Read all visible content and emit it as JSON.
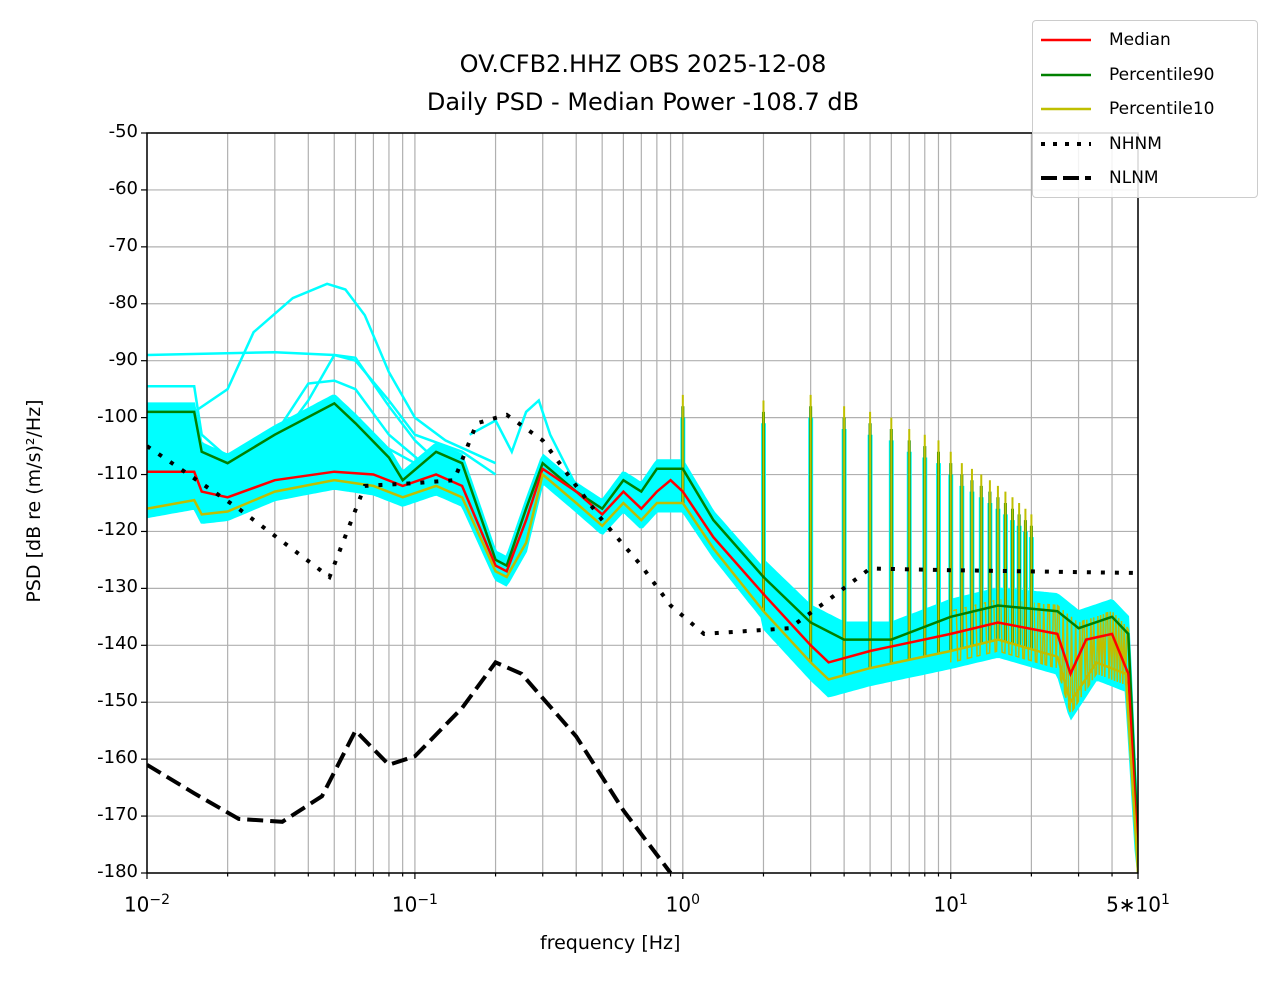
{
  "chart_data": {
    "type": "line",
    "title": "OV.CFB2.HHZ OBS 2025-12-08",
    "subtitle": "Daily PSD - Median Power -108.7 dB",
    "xlabel": "frequency [Hz]",
    "ylabel": "PSD [dB re (m/s)²/Hz]",
    "xscale": "log",
    "xlim": [
      0.01,
      50
    ],
    "ylim": [
      -180,
      -50
    ],
    "grid": true,
    "legend_position": "top-right outside",
    "yticks": [
      -50,
      -60,
      -70,
      -80,
      -90,
      -100,
      -110,
      -120,
      -130,
      -140,
      -150,
      -160,
      -170,
      -180
    ],
    "ytick_labels": [
      "-50",
      "-60",
      "-70",
      "-80",
      "-90",
      "-100",
      "-110",
      "-120",
      "-130",
      "-140",
      "-150",
      "-160",
      "-170",
      "-180"
    ],
    "xticks": [
      {
        "value": 0.01,
        "base": "10",
        "exp": "−2"
      },
      {
        "value": 0.1,
        "base": "10",
        "exp": "−1"
      },
      {
        "value": 1,
        "base": "10",
        "exp": "0"
      },
      {
        "value": 10,
        "base": "10",
        "exp": "1"
      },
      {
        "value": 50,
        "base": "5∗10",
        "exp": "1"
      }
    ],
    "series": [
      {
        "name": "Median",
        "color": "#ff0000",
        "style": "solid",
        "points": [
          [
            0.01,
            -109.5
          ],
          [
            0.015,
            -109.5
          ],
          [
            0.016,
            -113
          ],
          [
            0.02,
            -114
          ],
          [
            0.03,
            -111
          ],
          [
            0.05,
            -109.5
          ],
          [
            0.07,
            -110
          ],
          [
            0.09,
            -112
          ],
          [
            0.12,
            -110
          ],
          [
            0.15,
            -112
          ],
          [
            0.2,
            -126
          ],
          [
            0.22,
            -127
          ],
          [
            0.26,
            -118
          ],
          [
            0.3,
            -109
          ],
          [
            0.4,
            -113
          ],
          [
            0.5,
            -117
          ],
          [
            0.6,
            -113
          ],
          [
            0.7,
            -116
          ],
          [
            0.8,
            -113
          ],
          [
            0.9,
            -111
          ],
          [
            1.0,
            -113
          ],
          [
            1.3,
            -121
          ],
          [
            2,
            -131
          ],
          [
            3,
            -140
          ],
          [
            3.5,
            -143
          ],
          [
            5,
            -141
          ],
          [
            10,
            -138
          ],
          [
            15,
            -136
          ],
          [
            25,
            -138
          ],
          [
            28,
            -145
          ],
          [
            32,
            -139
          ],
          [
            40,
            -138
          ],
          [
            46,
            -145
          ],
          [
            50,
            -178
          ]
        ]
      },
      {
        "name": "Percentile90",
        "color": "#008000",
        "style": "solid",
        "points": [
          [
            0.01,
            -99
          ],
          [
            0.015,
            -99
          ],
          [
            0.016,
            -106
          ],
          [
            0.02,
            -108
          ],
          [
            0.03,
            -103
          ],
          [
            0.05,
            -97.5
          ],
          [
            0.06,
            -101
          ],
          [
            0.08,
            -107
          ],
          [
            0.09,
            -111
          ],
          [
            0.12,
            -106
          ],
          [
            0.15,
            -108
          ],
          [
            0.2,
            -125
          ],
          [
            0.22,
            -126
          ],
          [
            0.26,
            -116
          ],
          [
            0.3,
            -108
          ],
          [
            0.4,
            -113
          ],
          [
            0.5,
            -116
          ],
          [
            0.6,
            -111
          ],
          [
            0.7,
            -113
          ],
          [
            0.8,
            -109
          ],
          [
            1,
            -109
          ],
          [
            1.3,
            -118
          ],
          [
            2,
            -128
          ],
          [
            3,
            -136
          ],
          [
            4,
            -139
          ],
          [
            6,
            -139
          ],
          [
            10,
            -135
          ],
          [
            15,
            -133
          ],
          [
            25,
            -134
          ],
          [
            30,
            -137
          ],
          [
            40,
            -135
          ],
          [
            46,
            -138
          ],
          [
            50,
            -175
          ]
        ]
      },
      {
        "name": "Percentile10",
        "color": "#bfbf00",
        "style": "solid",
        "points": [
          [
            0.01,
            -116
          ],
          [
            0.015,
            -114.5
          ],
          [
            0.016,
            -117
          ],
          [
            0.02,
            -116.5
          ],
          [
            0.03,
            -113
          ],
          [
            0.05,
            -111
          ],
          [
            0.07,
            -112
          ],
          [
            0.09,
            -114
          ],
          [
            0.12,
            -112
          ],
          [
            0.15,
            -114
          ],
          [
            0.2,
            -127
          ],
          [
            0.22,
            -128
          ],
          [
            0.26,
            -122
          ],
          [
            0.3,
            -110
          ],
          [
            0.4,
            -115
          ],
          [
            0.5,
            -119
          ],
          [
            0.6,
            -115
          ],
          [
            0.7,
            -118
          ],
          [
            0.8,
            -115
          ],
          [
            1,
            -115
          ],
          [
            1.3,
            -123
          ],
          [
            2,
            -134
          ],
          [
            3,
            -143
          ],
          [
            3.5,
            -146
          ],
          [
            5,
            -144
          ],
          [
            10,
            -141
          ],
          [
            15,
            -139
          ],
          [
            25,
            -142
          ],
          [
            28,
            -150
          ],
          [
            35,
            -143
          ],
          [
            45,
            -145
          ],
          [
            50,
            -180
          ]
        ]
      },
      {
        "name": "NHNM",
        "color": "#000000",
        "style": "dotted",
        "points": [
          [
            0.01,
            -105
          ],
          [
            0.022,
            -116
          ],
          [
            0.048,
            -128
          ],
          [
            0.065,
            -112
          ],
          [
            0.1,
            -111.5
          ],
          [
            0.14,
            -111
          ],
          [
            0.17,
            -101
          ],
          [
            0.22,
            -99.5
          ],
          [
            0.3,
            -104
          ],
          [
            0.4,
            -112
          ],
          [
            0.5,
            -118
          ],
          [
            0.7,
            -126
          ],
          [
            0.9,
            -133
          ],
          [
            1.2,
            -138
          ],
          [
            2.5,
            -137
          ],
          [
            3.5,
            -132
          ],
          [
            5,
            -126.5
          ],
          [
            10,
            -126.8
          ],
          [
            50,
            -127.3
          ]
        ]
      },
      {
        "name": "NLNM",
        "color": "#000000",
        "style": "dashed",
        "points": [
          [
            0.01,
            -161
          ],
          [
            0.015,
            -166
          ],
          [
            0.022,
            -170.5
          ],
          [
            0.032,
            -171
          ],
          [
            0.045,
            -166.5
          ],
          [
            0.06,
            -155
          ],
          [
            0.08,
            -161
          ],
          [
            0.1,
            -159.5
          ],
          [
            0.15,
            -151
          ],
          [
            0.2,
            -143
          ],
          [
            0.25,
            -145
          ],
          [
            0.4,
            -156
          ],
          [
            0.6,
            -169
          ],
          [
            0.9,
            -180
          ]
        ]
      }
    ],
    "harmonic_spikes": [
      [
        1,
        -100
      ],
      [
        2,
        -101
      ],
      [
        3,
        -100
      ],
      [
        4,
        -102
      ],
      [
        5,
        -103
      ],
      [
        6,
        -104
      ],
      [
        7,
        -106
      ],
      [
        8,
        -107
      ],
      [
        9,
        -108
      ],
      [
        10,
        -110
      ],
      [
        11,
        -112
      ],
      [
        12,
        -113
      ],
      [
        13,
        -114
      ],
      [
        14,
        -115
      ],
      [
        15,
        -116
      ],
      [
        16,
        -117
      ],
      [
        17,
        -118
      ],
      [
        18,
        -119
      ],
      [
        19,
        -120
      ],
      [
        20,
        -121
      ]
    ],
    "individual_traces_color": "#00ffff",
    "individual_traces": [
      [
        [
          0.01,
          -89
        ],
        [
          0.03,
          -88.5
        ],
        [
          0.05,
          -89
        ],
        [
          0.06,
          -90
        ],
        [
          0.08,
          -97
        ],
        [
          0.1,
          -103
        ],
        [
          0.15,
          -106
        ],
        [
          0.2,
          -110
        ]
      ],
      [
        [
          0.015,
          -99
        ],
        [
          0.02,
          -95
        ],
        [
          0.025,
          -85
        ],
        [
          0.035,
          -79
        ],
        [
          0.047,
          -76.5
        ],
        [
          0.055,
          -77.5
        ],
        [
          0.065,
          -82
        ],
        [
          0.08,
          -92
        ],
        [
          0.1,
          -100
        ],
        [
          0.13,
          -104
        ],
        [
          0.2,
          -108
        ]
      ],
      [
        [
          0.02,
          -108
        ],
        [
          0.03,
          -103
        ],
        [
          0.04,
          -94
        ],
        [
          0.05,
          -93.5
        ],
        [
          0.06,
          -95
        ],
        [
          0.08,
          -103
        ],
        [
          0.12,
          -110
        ]
      ],
      [
        [
          0.025,
          -110
        ],
        [
          0.04,
          -97
        ],
        [
          0.05,
          -89
        ],
        [
          0.06,
          -89.5
        ],
        [
          0.08,
          -98
        ],
        [
          0.1,
          -104
        ],
        [
          0.13,
          -109
        ]
      ],
      [
        [
          0.16,
          -103
        ],
        [
          0.2,
          -100.5
        ],
        [
          0.23,
          -106
        ],
        [
          0.26,
          -99
        ],
        [
          0.29,
          -97
        ],
        [
          0.32,
          -103
        ],
        [
          0.4,
          -112
        ]
      ],
      [
        [
          0.01,
          -94.5
        ],
        [
          0.015,
          -94.5
        ],
        [
          0.016,
          -103
        ],
        [
          0.02,
          -107
        ],
        [
          0.04,
          -103
        ],
        [
          0.05,
          -101
        ],
        [
          0.07,
          -104
        ],
        [
          0.1,
          -108
        ]
      ]
    ]
  }
}
